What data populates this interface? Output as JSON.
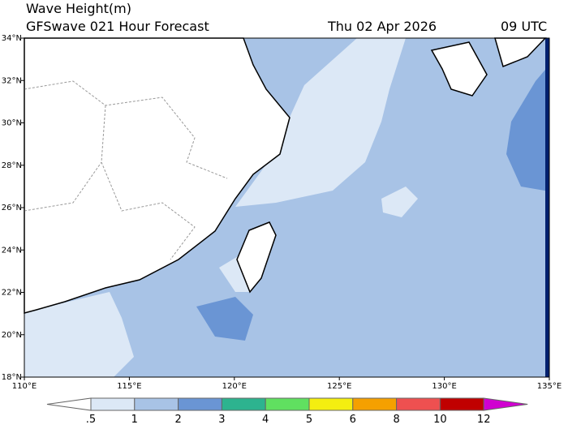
{
  "header": {
    "title": "Wave Height(m)",
    "subtitle": "GFSwave 021 Hour Forecast",
    "date": "Thu 02 Apr 2026",
    "time": "09 UTC"
  },
  "map": {
    "lon_labels": [
      "110°E",
      "115°E",
      "120°E",
      "125°E",
      "130°E",
      "135°E"
    ],
    "lat_labels": [
      "34°N",
      "32°N",
      "30°N",
      "28°N",
      "26°N",
      "24°N",
      "22°N",
      "20°N",
      "18°N"
    ]
  },
  "colorbar": {
    "labels": [
      ".5",
      "1",
      "2",
      "3",
      "4",
      "5",
      "6",
      "8",
      "10",
      "12"
    ],
    "colors": [
      "#ffffff",
      "#dce8f6",
      "#a8c3e6",
      "#6a95d4",
      "#2db38f",
      "#60e060",
      "#f4ee10",
      "#f5a000",
      "#ee5050",
      "#c00000",
      "#d000d0"
    ]
  }
}
